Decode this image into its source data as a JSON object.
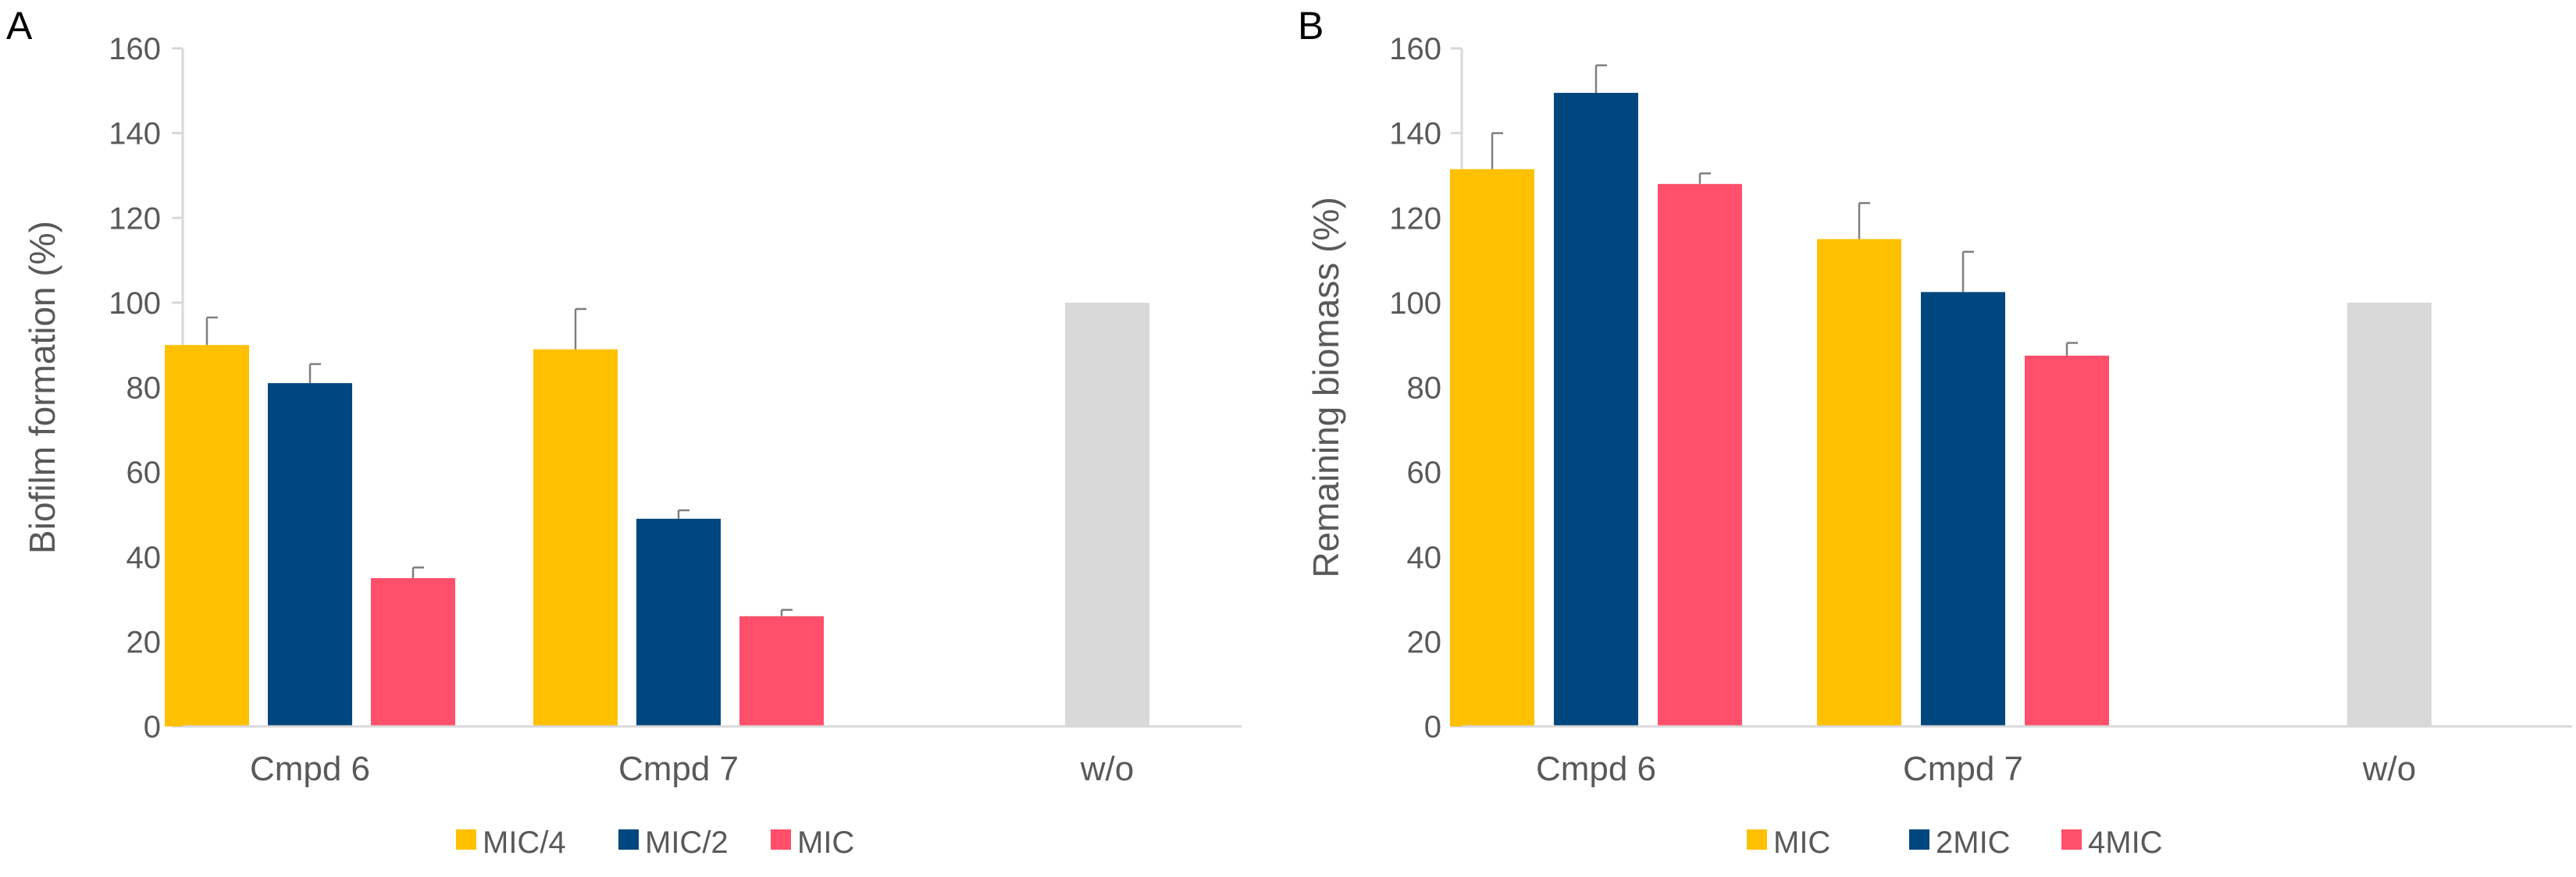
{
  "chart_data": [
    {
      "type": "bar",
      "panel_label": "A",
      "title": "",
      "xlabel": "",
      "ylabel": "Biofilm formation (%)",
      "ylim": [
        0,
        160
      ],
      "yticks": [
        "0",
        "20",
        "40",
        "60",
        "80",
        "100",
        "120",
        "140",
        "160"
      ],
      "categories": [
        "Cmpd 6",
        "Cmpd 7",
        "w/o"
      ],
      "series": [
        {
          "name": "MIC/4",
          "color": "#FFC000",
          "values": [
            90,
            89,
            null
          ],
          "errors": [
            6.5,
            9.5,
            null
          ]
        },
        {
          "name": "MIC/2",
          "color": "#00467F",
          "values": [
            81,
            49,
            null
          ],
          "errors": [
            4.5,
            2,
            null
          ]
        },
        {
          "name": "MIC",
          "color": "#FF4F6A",
          "values": [
            35,
            26,
            null
          ],
          "errors": [
            2.5,
            1.5,
            null
          ]
        }
      ],
      "control": {
        "category": "w/o",
        "value": 100,
        "color": "#D9D9D9"
      },
      "legend": "bottom"
    },
    {
      "type": "bar",
      "panel_label": "B",
      "title": "",
      "xlabel": "",
      "ylabel": "Remaining biomass (%)",
      "ylim": [
        0,
        160
      ],
      "yticks": [
        "0",
        "20",
        "40",
        "60",
        "80",
        "100",
        "120",
        "140",
        "160"
      ],
      "categories": [
        "Cmpd 6",
        "Cmpd 7",
        "w/o"
      ],
      "series": [
        {
          "name": "MIC",
          "color": "#FFC000",
          "values": [
            131.5,
            115,
            null
          ],
          "errors": [
            8.5,
            8.5,
            null
          ]
        },
        {
          "name": "2MIC",
          "color": "#00467F",
          "values": [
            149.5,
            102.5,
            null
          ],
          "errors": [
            6.5,
            9.5,
            null
          ]
        },
        {
          "name": "4MIC",
          "color": "#FF4F6A",
          "values": [
            128,
            87.5,
            null
          ],
          "errors": [
            2.5,
            3,
            null
          ]
        }
      ],
      "control": {
        "category": "w/o",
        "value": 100,
        "color": "#D9D9D9"
      },
      "legend": "bottom"
    }
  ]
}
